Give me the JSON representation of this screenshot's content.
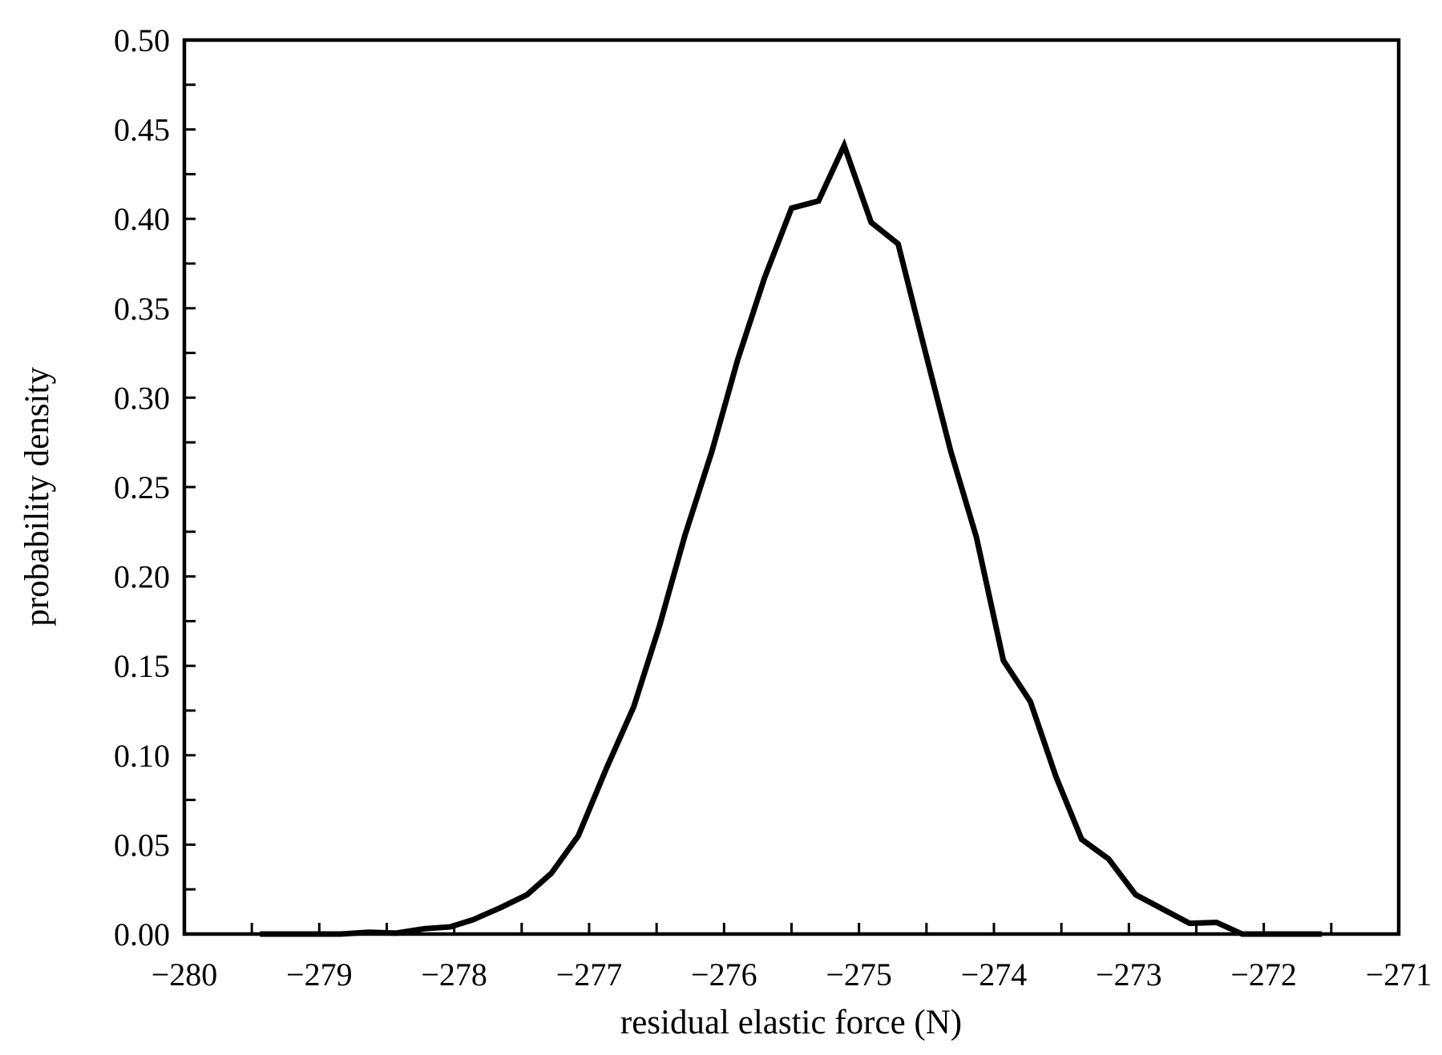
{
  "chart_data": {
    "type": "line",
    "x_label": "residual elastic force (N)",
    "y_label": "probability density",
    "x": [
      -279.44,
      -279.04,
      -278.84,
      -278.63,
      -278.43,
      -278.22,
      -278.03,
      -277.86,
      -277.65,
      -277.46,
      -277.28,
      -277.08,
      -276.87,
      -276.67,
      -276.48,
      -276.29,
      -276.09,
      -275.9,
      -275.7,
      -275.5,
      -275.3,
      -275.11,
      -274.91,
      -274.71,
      -274.52,
      -274.32,
      -274.13,
      -273.93,
      -273.73,
      -273.54,
      -273.35,
      -273.15,
      -272.95,
      -272.75,
      -272.55,
      -272.35,
      -272.16,
      -271.96,
      -271.76,
      -271.57
    ],
    "series": [
      {
        "color": "#000000",
        "values": [
          0,
          0,
          0,
          0.001,
          0.0005,
          0.003,
          0.004,
          0.008,
          0.015,
          0.022,
          0.034,
          0.055,
          0.093,
          0.127,
          0.172,
          0.223,
          0.27,
          0.321,
          0.367,
          0.406,
          0.41,
          0.441,
          0.398,
          0.386,
          0.329,
          0.27,
          0.222,
          0.153,
          0.13,
          0.088,
          0.053,
          0.042,
          0.022,
          0.014,
          0.006,
          0.0065,
          0,
          0,
          0,
          0
        ]
      }
    ],
    "xlim": [
      -280,
      -271
    ],
    "ylim": [
      0,
      0.5
    ],
    "xticks": [
      {
        "value": -280,
        "label": "−280"
      },
      {
        "value": -279,
        "label": "−279"
      },
      {
        "value": -278,
        "label": "−278"
      },
      {
        "value": -277,
        "label": "−277"
      },
      {
        "value": -276,
        "label": "−276"
      },
      {
        "value": -275,
        "label": "−275"
      },
      {
        "value": -274,
        "label": "−274"
      },
      {
        "value": -273,
        "label": "−273"
      },
      {
        "value": -272,
        "label": "−272"
      },
      {
        "value": -271,
        "label": "−271"
      }
    ],
    "yticks": [
      {
        "value": 0,
        "label": "0.00"
      },
      {
        "value": 0.05,
        "label": "0.05"
      },
      {
        "value": 0.1,
        "label": "0.10"
      },
      {
        "value": 0.15,
        "label": "0.15"
      },
      {
        "value": 0.2,
        "label": "0.20"
      },
      {
        "value": 0.25,
        "label": "0.25"
      },
      {
        "value": 0.3,
        "label": "0.30"
      },
      {
        "value": 0.35,
        "label": "0.35"
      },
      {
        "value": 0.4,
        "label": "0.40"
      },
      {
        "value": 0.45,
        "label": "0.45"
      },
      {
        "value": 0.5,
        "label": "0.50"
      }
    ],
    "grid": false
  }
}
